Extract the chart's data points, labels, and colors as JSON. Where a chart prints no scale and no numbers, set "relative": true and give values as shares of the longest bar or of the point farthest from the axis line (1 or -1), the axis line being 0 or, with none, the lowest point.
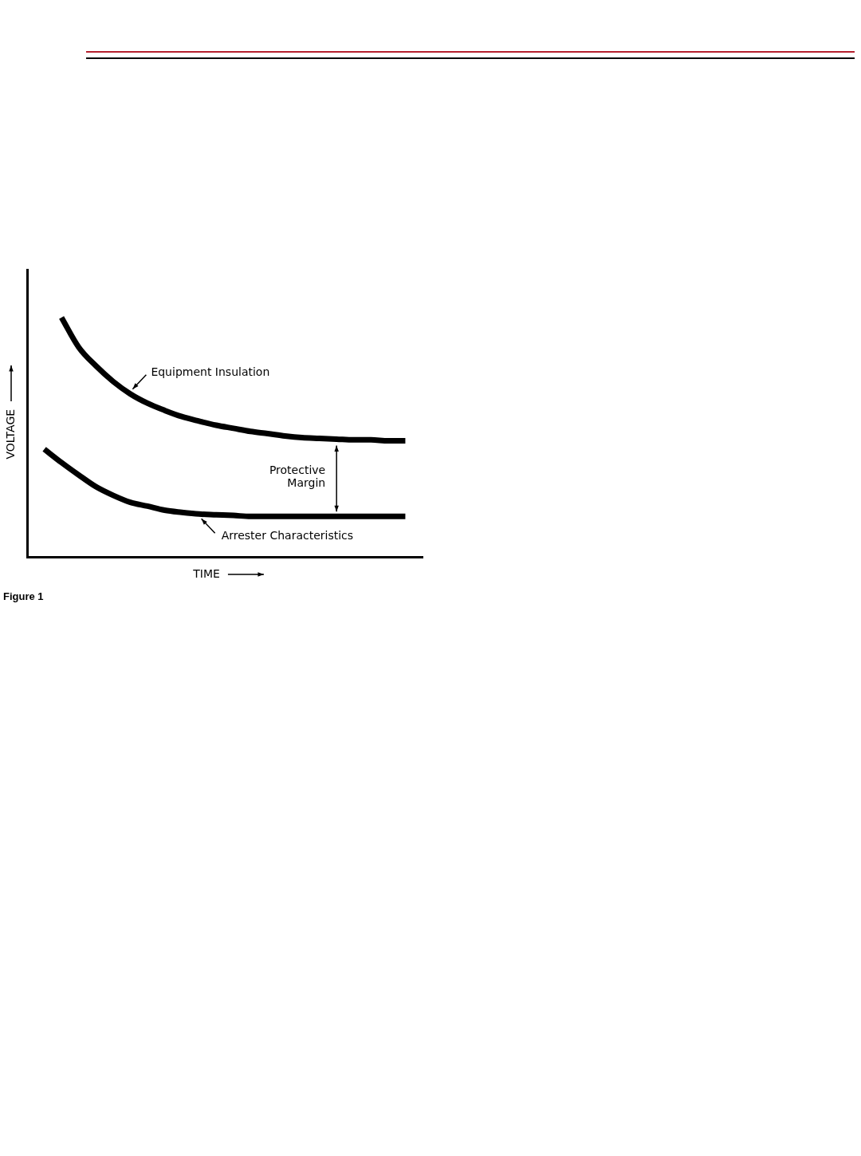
{
  "chart_data": {
    "type": "line",
    "relative": true,
    "xlabel": "TIME",
    "ylabel": "VOLTAGE",
    "grid": false,
    "legend": false,
    "marker": "none",
    "line_style": "solid",
    "categories": [
      null,
      null,
      null,
      null,
      null,
      null,
      null,
      null,
      null,
      null,
      null,
      null,
      null,
      null,
      null,
      null,
      null,
      null,
      null,
      null,
      null,
      null,
      null,
      null
    ],
    "series": [
      {
        "color": "#000000",
        "values": [
          null,
          null,
          1,
          0.876,
          0.798,
          0.733,
          0.681,
          0.642,
          0.612,
          0.586,
          0.567,
          0.55,
          0.537,
          0.524,
          0.515,
          0.505,
          0.498,
          0.495,
          0.492,
          0.489,
          0.489,
          0.485,
          0.485,
          null
        ]
      },
      {
        "color": "#000000",
        "values": [
          null,
          0.45,
          0.394,
          0.342,
          0.293,
          0.257,
          0.228,
          0.212,
          0.195,
          0.186,
          0.179,
          0.176,
          0.173,
          0.169,
          0.169,
          0.169,
          0.169,
          0.169,
          0.169,
          0.169,
          0.169,
          0.169,
          0.169,
          null
        ]
      }
    ],
    "annotations": [
      "Equipment Insulation",
      "Protective Margin",
      "Arrester Characteristics",
      "Figure 1"
    ]
  }
}
